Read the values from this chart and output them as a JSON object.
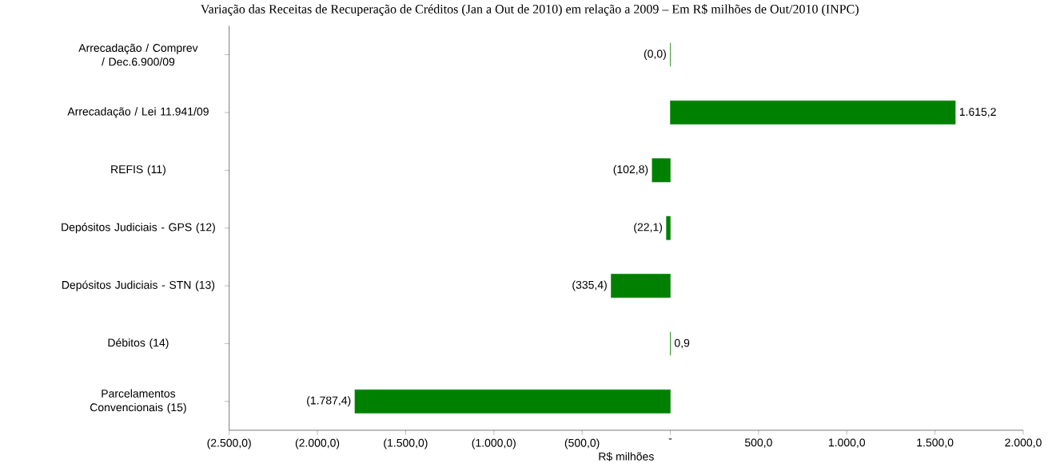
{
  "chart_data": {
    "type": "bar",
    "orientation": "horizontal",
    "title": "Variação das Receitas de Recuperação de Créditos (Jan a Out de 2010) em relação a 2009 – Em R$ milhões de Out/2010 (INPC)",
    "xlabel": "R$ milhões",
    "categories": [
      "Arrecadação / Comprev / Dec.6.900/09",
      "Arrecadação / Lei 11.941/09",
      "REFIS (11)",
      "Depósitos Judiciais - GPS (12)",
      "Depósitos Judiciais - STN (13)",
      "Débitos  (14)",
      "Parcelamentos Convencionais (15)"
    ],
    "values": [
      -0.0,
      1615.2,
      -102.8,
      -22.1,
      -335.4,
      0.9,
      -1787.4
    ],
    "value_labels": [
      "(0,0)",
      "1.615,2",
      "(102,8)",
      "(22,1)",
      "(335,4)",
      "0,9",
      "(1.787,4)"
    ],
    "color": "#008000",
    "xlim": [
      -2500,
      2000
    ],
    "xticks": [
      {
        "value": -2500,
        "label": "(2.500,0)"
      },
      {
        "value": -2000,
        "label": "(2.000,0)"
      },
      {
        "value": -1500,
        "label": "(1.500,0)"
      },
      {
        "value": -1000,
        "label": "(1.000,0)"
      },
      {
        "value": -500,
        "label": "(500,0)"
      },
      {
        "value": 0,
        "label": "-"
      },
      {
        "value": 500,
        "label": "500,0"
      },
      {
        "value": 1000,
        "label": "1.000,0"
      },
      {
        "value": 1500,
        "label": "1.500,0"
      },
      {
        "value": 2000,
        "label": "2.000,0"
      }
    ],
    "grid": false
  }
}
